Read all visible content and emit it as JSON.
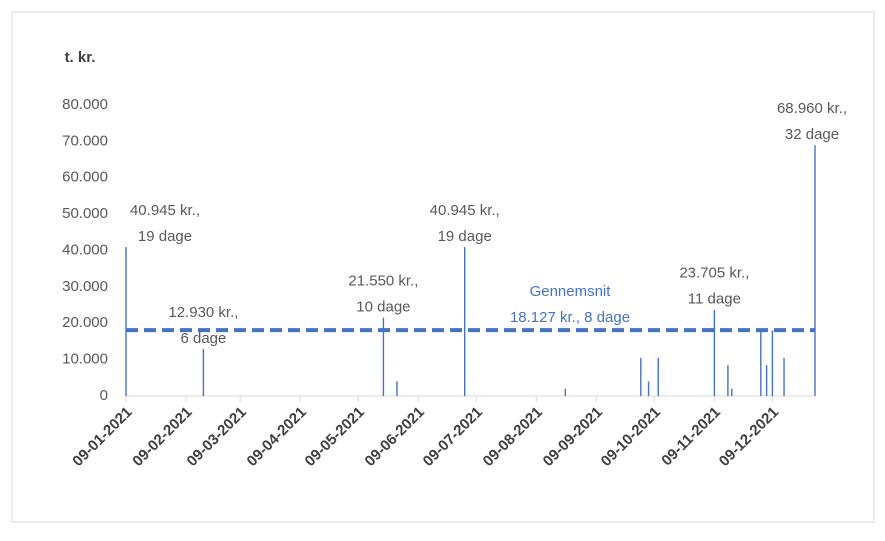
{
  "chart_data": {
    "type": "bar",
    "y_label": "t. kr.",
    "color": "#4472c4",
    "x": [
      "09-01-2021",
      "18-02-2021",
      "22-05-2021",
      "29-05-2021",
      "03-07-2021",
      "24-08-2021",
      "02-10-2021",
      "06-10-2021",
      "11-10-2021",
      "09-11-2021",
      "16-11-2021",
      "18-11-2021",
      "03-12-2021",
      "06-12-2021",
      "09-12-2021",
      "15-12-2021",
      "31-12-2021"
    ],
    "values": [
      40945,
      12930,
      21550,
      4000,
      40945,
      2000,
      10500,
      4000,
      10500,
      23705,
      8500,
      2000,
      18000,
      8500,
      18000,
      10500,
      68960
    ],
    "value_labels": [
      [
        "40.945 kr.,",
        "19 dage"
      ],
      [
        "12.930 kr.,",
        "6 dage"
      ],
      [
        "21.550 kr.,",
        "10 dage"
      ],
      null,
      [
        "40.945 kr.,",
        "19 dage"
      ],
      null,
      null,
      null,
      null,
      [
        "23.705 kr.,",
        "11 dage"
      ],
      null,
      null,
      null,
      null,
      null,
      null,
      [
        "68.960 kr.,",
        "32 dage"
      ]
    ],
    "average": {
      "value": 18127,
      "name": "Gennemsnit",
      "label": "18.127 kr., 8 dage",
      "color": "#4472c4"
    },
    "xlim": [
      "09-01-2021",
      "31-12-2021"
    ],
    "xticks": [
      "09-01-2021",
      "09-02-2021",
      "09-03-2021",
      "09-04-2021",
      "09-05-2021",
      "09-06-2021",
      "09-07-2021",
      "09-08-2021",
      "09-09-2021",
      "09-10-2021",
      "09-11-2021",
      "09-12-2021"
    ],
    "ylim": [
      0,
      80000
    ],
    "yticks": [
      {
        "value": 0,
        "label": "0"
      },
      {
        "value": 10000,
        "label": "10.000"
      },
      {
        "value": 20000,
        "label": "20.000"
      },
      {
        "value": 30000,
        "label": "30.000"
      },
      {
        "value": 40000,
        "label": "40.000"
      },
      {
        "value": 50000,
        "label": "50.000"
      },
      {
        "value": 60000,
        "label": "60.000"
      },
      {
        "value": 70000,
        "label": "70.000"
      },
      {
        "value": 80000,
        "label": "80.000"
      }
    ]
  }
}
